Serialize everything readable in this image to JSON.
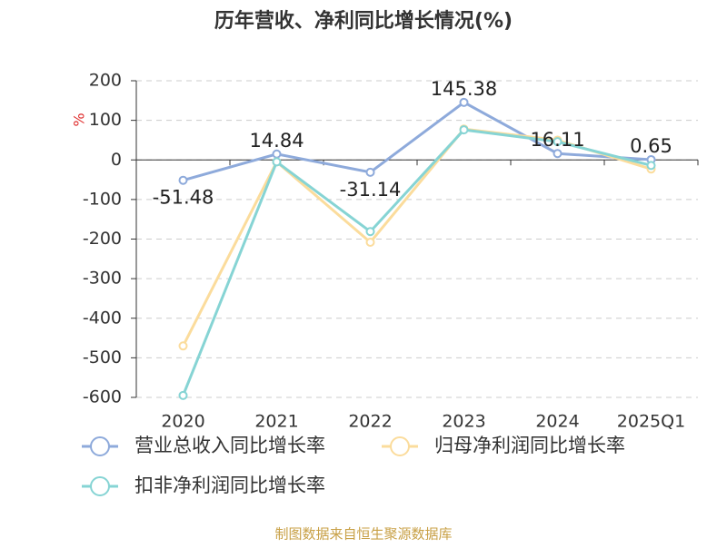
{
  "chart_data": {
    "type": "line",
    "title": "历年营收、净利同比增长情况(%)",
    "y_label": "%",
    "source": "制图数据来自恒生聚源数据库",
    "categories": [
      "2020",
      "2021",
      "2022",
      "2023",
      "2024",
      "2025Q1"
    ],
    "series": [
      {
        "name": "营业总收入同比增长率",
        "color": "#8eaadb",
        "values": [
          -51.48,
          14.84,
          -31.14,
          145.38,
          16.11,
          0.65
        ],
        "labels": true
      },
      {
        "name": "归母净利润同比增长率",
        "color": "#fbdc9c",
        "values": [
          -470,
          -5,
          -208,
          78,
          50,
          -23
        ]
      },
      {
        "name": "扣非净利润同比增长率",
        "color": "#86d4d4",
        "values": [
          -595,
          -5,
          -181,
          76,
          46,
          -14
        ]
      }
    ],
    "ylim": [
      -600,
      200
    ],
    "yticks": [
      -600,
      -500,
      -400,
      -300,
      -200,
      -100,
      0,
      100,
      200
    ],
    "grid": true
  }
}
